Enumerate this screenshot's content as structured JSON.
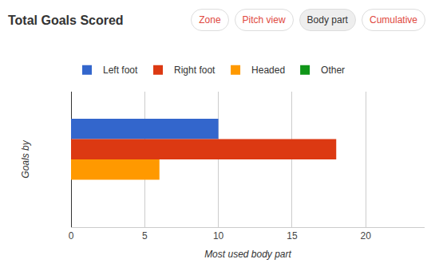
{
  "chart_data": {
    "type": "bar",
    "title": "Total Goals Scored",
    "orientation": "horizontal",
    "xlabel": "Most used body part",
    "ylabel": "Goals by",
    "categories": [
      null
    ],
    "series": [
      {
        "name": "Left foot",
        "color": "#3366cc",
        "values": [
          10
        ]
      },
      {
        "name": "Right foot",
        "color": "#dc3912",
        "values": [
          18
        ]
      },
      {
        "name": "Headed",
        "color": "#ff9900",
        "values": [
          6
        ]
      },
      {
        "name": "Other",
        "color": "#109618",
        "values": [
          0
        ]
      }
    ],
    "xlim": [
      0,
      24
    ],
    "xticks": [
      0,
      5,
      10,
      15,
      20
    ],
    "grid": true,
    "legend": "top",
    "tick_labels": "x"
  },
  "buttons": {
    "labels": [
      "Zone",
      "Pitch view",
      "Body part",
      "Cumulative"
    ],
    "selected": "Body part"
  }
}
